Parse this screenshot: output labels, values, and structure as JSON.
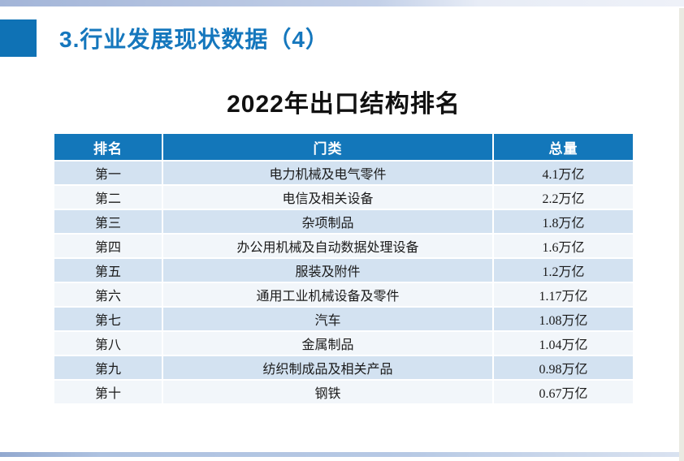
{
  "slide": {
    "page_heading": "3.行业发展现状数据（4）",
    "table_title": "2022年出口结构排名"
  },
  "table": {
    "columns": [
      "排名",
      "门类",
      "总量"
    ],
    "rows": [
      {
        "rank": "第一",
        "category": "电力机械及电气零件",
        "total": "4.1万亿"
      },
      {
        "rank": "第二",
        "category": "电信及相关设备",
        "total": "2.2万亿"
      },
      {
        "rank": "第三",
        "category": "杂项制品",
        "total": "1.8万亿"
      },
      {
        "rank": "第四",
        "category": "办公用机械及自动数据处理设备",
        "total": "1.6万亿"
      },
      {
        "rank": "第五",
        "category": "服装及附件",
        "total": "1.2万亿"
      },
      {
        "rank": "第六",
        "category": "通用工业机械设备及零件",
        "total": "1.17万亿"
      },
      {
        "rank": "第七",
        "category": "汽车",
        "total": "1.08万亿"
      },
      {
        "rank": "第八",
        "category": "金属制品",
        "total": "1.04万亿"
      },
      {
        "rank": "第九",
        "category": "纺织制成品及相关产品",
        "total": "0.98万亿"
      },
      {
        "rank": "第十",
        "category": "钢铁",
        "total": "0.67万亿"
      }
    ]
  },
  "colors": {
    "accent_blue": "#0f72b5",
    "heading_blue": "#1577bd",
    "table_header_blue": "#1377ba",
    "row_odd": "#d3e2f1",
    "row_even": "#f2f6fa",
    "top_bar_blue": "#a3b5d8",
    "bottom_bar_blue": "#92a9cf"
  }
}
